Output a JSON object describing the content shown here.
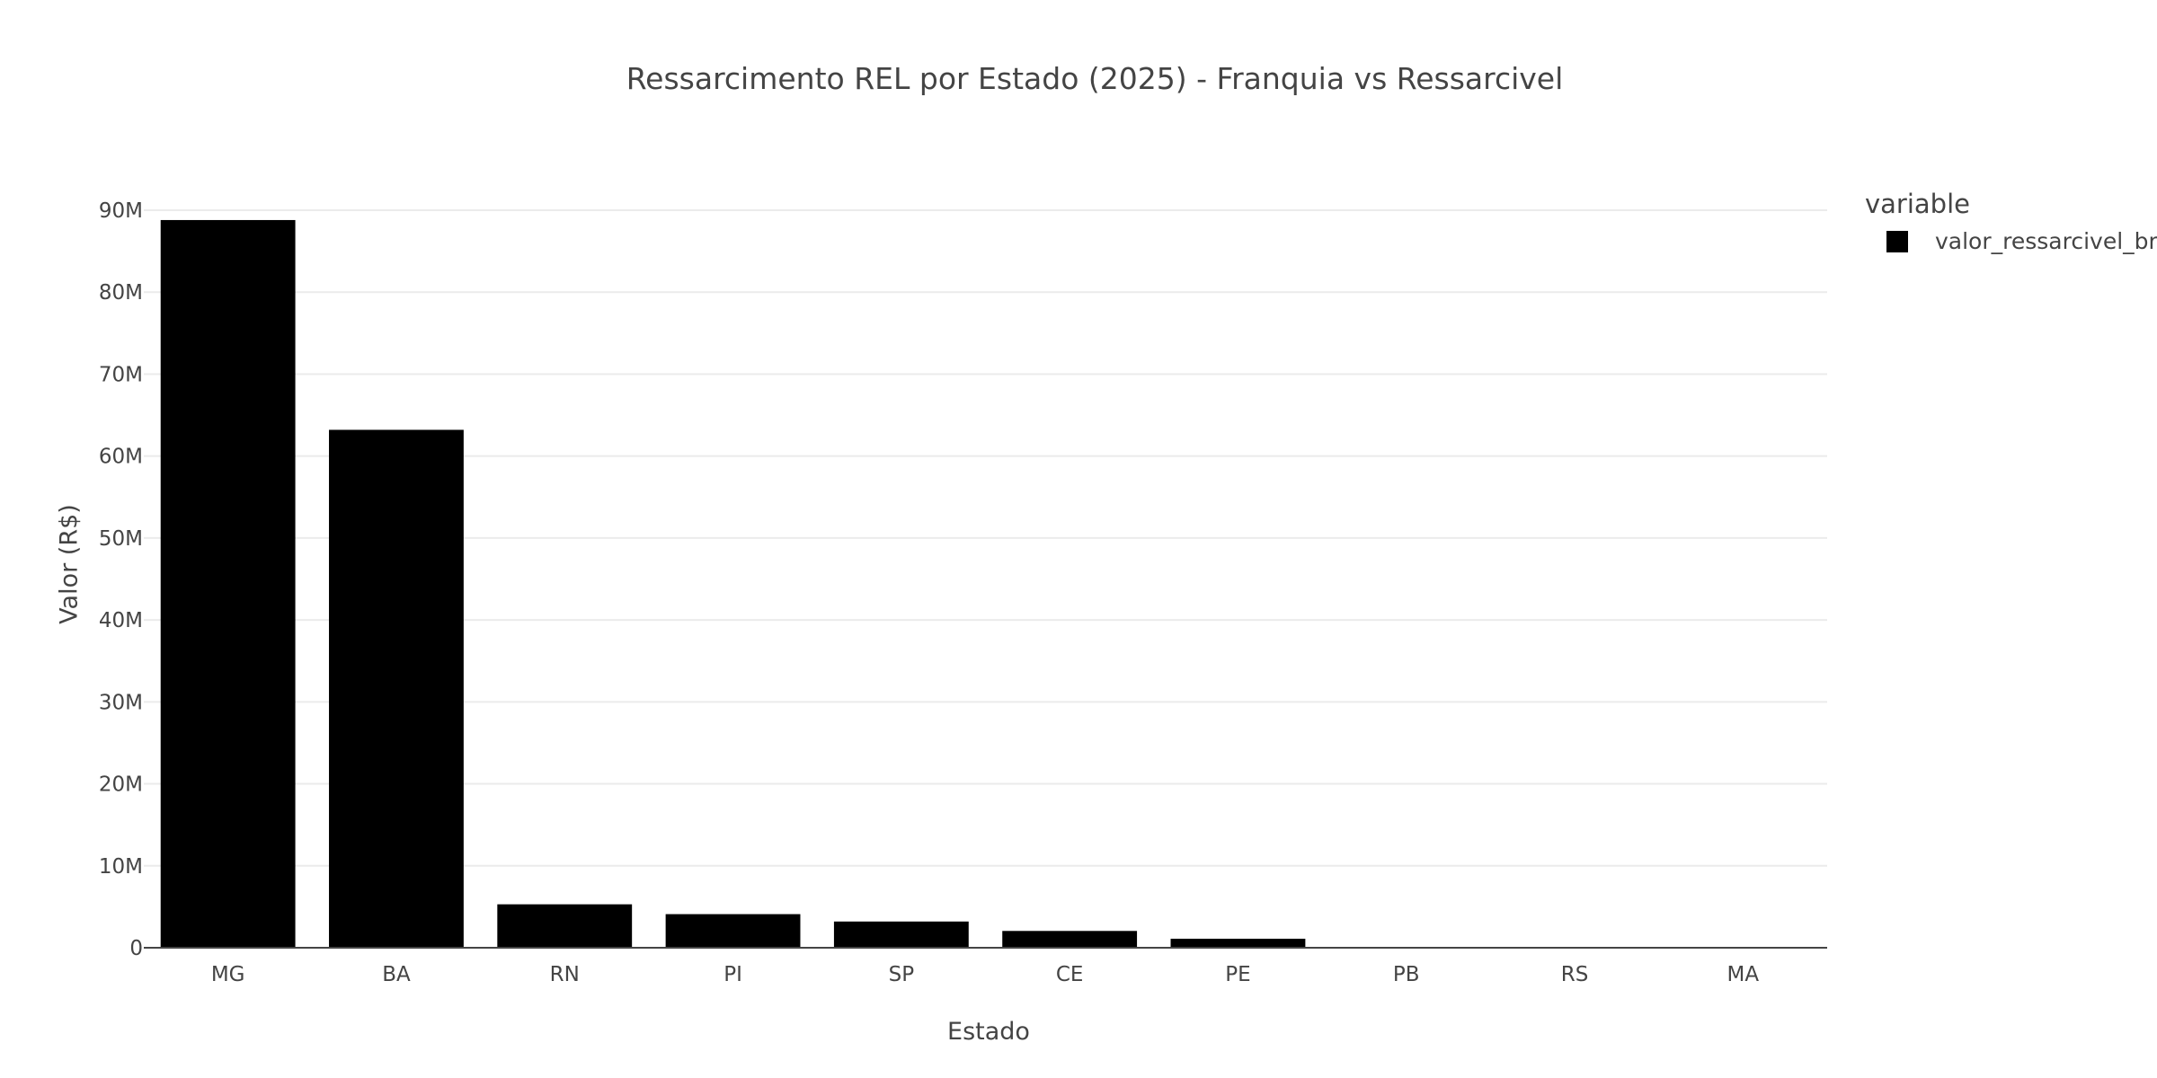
{
  "chart_data": {
    "type": "bar",
    "title": "Ressarcimento REL por Estado (2025) - Franquia vs Ressarcivel",
    "xlabel": "Estado",
    "ylabel": "Valor (R$)",
    "categories": [
      "MG",
      "BA",
      "RN",
      "PI",
      "SP",
      "CE",
      "PE",
      "PB",
      "RS",
      "MA"
    ],
    "series": [
      {
        "name": "valor_ressarcivel_brl",
        "color": "#000000",
        "values": [
          88800000,
          63200000,
          5300000,
          4100000,
          3200000,
          2050000,
          1100000,
          100000,
          20000,
          10000
        ]
      }
    ],
    "ylim": [
      0,
      90000000
    ],
    "yticks": [
      0,
      10000000,
      20000000,
      30000000,
      40000000,
      50000000,
      60000000,
      70000000,
      80000000,
      90000000
    ],
    "ytick_labels": [
      "0",
      "10M",
      "20M",
      "30M",
      "40M",
      "50M",
      "60M",
      "70M",
      "80M",
      "90M"
    ],
    "grid": true,
    "legend": {
      "title": "variable",
      "placement": "right"
    }
  }
}
